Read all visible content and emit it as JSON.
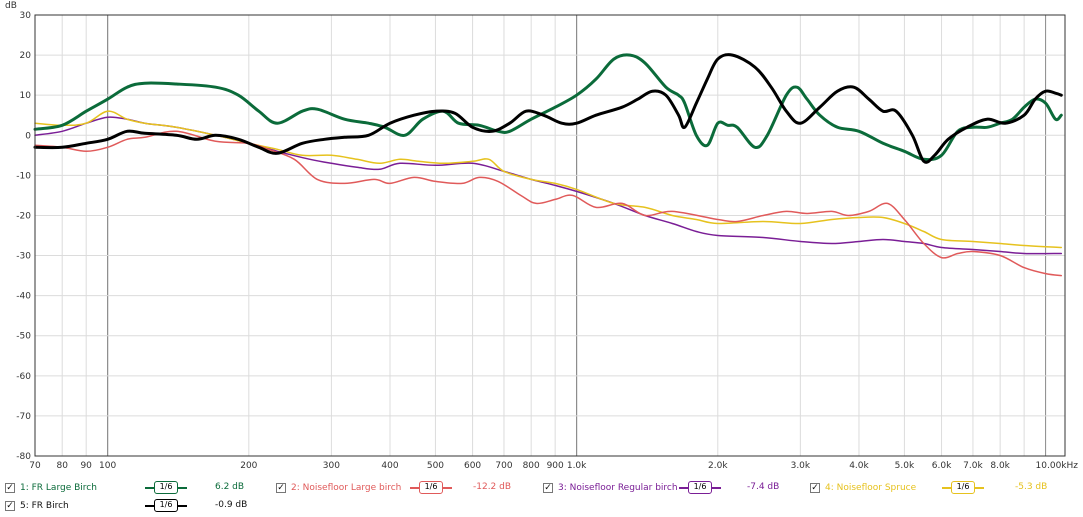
{
  "chart_data": {
    "type": "line",
    "ylabel": "dB",
    "xscale": "log",
    "xlim": [
      70,
      11000
    ],
    "ylim": [
      -80,
      30
    ],
    "grid": true,
    "legend_position": "bottom",
    "y_ticks": [
      "30",
      "20",
      "10",
      "0",
      "-10",
      "-20",
      "-30",
      "-40",
      "-50",
      "-60",
      "-70",
      "-80"
    ],
    "x_ticks": [
      {
        "v": 70,
        "label": "70"
      },
      {
        "v": 80,
        "label": "80"
      },
      {
        "v": 90,
        "label": "90"
      },
      {
        "v": 100,
        "label": "100"
      },
      {
        "v": 200,
        "label": "200"
      },
      {
        "v": 300,
        "label": "300"
      },
      {
        "v": 400,
        "label": "400"
      },
      {
        "v": 500,
        "label": "500"
      },
      {
        "v": 600,
        "label": "600"
      },
      {
        "v": 700,
        "label": "700"
      },
      {
        "v": 800,
        "label": "800"
      },
      {
        "v": 900,
        "label": "900"
      },
      {
        "v": 1000,
        "label": "1.0k"
      },
      {
        "v": 2000,
        "label": "2.0k"
      },
      {
        "v": 3000,
        "label": "3.0k"
      },
      {
        "v": 4000,
        "label": "4.0k"
      },
      {
        "v": 5000,
        "label": "5.0k"
      },
      {
        "v": 6000,
        "label": "6.0k"
      },
      {
        "v": 7000,
        "label": "7.0k"
      },
      {
        "v": 8000,
        "label": "8.0k"
      },
      {
        "v": 10000,
        "label": "10.00kHz"
      }
    ],
    "series": [
      {
        "name": "1: FR Large Birch",
        "color": "#0b6b3a",
        "width": 3,
        "value": "6.2 dB",
        "points": [
          [
            70,
            1.5
          ],
          [
            80,
            2.5
          ],
          [
            90,
            6
          ],
          [
            100,
            9
          ],
          [
            110,
            12
          ],
          [
            120,
            13
          ],
          [
            140,
            12.8
          ],
          [
            170,
            12
          ],
          [
            190,
            10
          ],
          [
            210,
            6
          ],
          [
            230,
            3
          ],
          [
            260,
            6
          ],
          [
            280,
            6.5
          ],
          [
            320,
            4
          ],
          [
            360,
            3
          ],
          [
            390,
            2
          ],
          [
            430,
            0
          ],
          [
            470,
            4
          ],
          [
            520,
            6
          ],
          [
            560,
            3
          ],
          [
            620,
            2.5
          ],
          [
            680,
            1
          ],
          [
            720,
            1
          ],
          [
            800,
            4
          ],
          [
            900,
            7
          ],
          [
            1000,
            10
          ],
          [
            1100,
            14
          ],
          [
            1200,
            19
          ],
          [
            1300,
            20
          ],
          [
            1400,
            18
          ],
          [
            1550,
            12
          ],
          [
            1650,
            10
          ],
          [
            1700,
            8
          ],
          [
            1800,
            0
          ],
          [
            1900,
            -2.5
          ],
          [
            2000,
            3
          ],
          [
            2100,
            2.5
          ],
          [
            2200,
            2
          ],
          [
            2400,
            -3
          ],
          [
            2550,
            0
          ],
          [
            2800,
            10
          ],
          [
            2950,
            12
          ],
          [
            3100,
            9
          ],
          [
            3300,
            5
          ],
          [
            3600,
            2
          ],
          [
            4000,
            1
          ],
          [
            4500,
            -2
          ],
          [
            5000,
            -4
          ],
          [
            5500,
            -6
          ],
          [
            6000,
            -5
          ],
          [
            6500,
            1
          ],
          [
            7000,
            2
          ],
          [
            7500,
            2
          ],
          [
            8000,
            3
          ],
          [
            8500,
            4
          ],
          [
            9000,
            7
          ],
          [
            9500,
            9
          ],
          [
            10000,
            8
          ],
          [
            10500,
            4
          ],
          [
            10800,
            5
          ]
        ]
      },
      {
        "name": "2: Noisefloor Large birch",
        "color": "#e05a5a",
        "width": 1.5,
        "value": "-12.2 dB",
        "points": [
          [
            70,
            -2.5
          ],
          [
            80,
            -3
          ],
          [
            90,
            -4
          ],
          [
            100,
            -3
          ],
          [
            110,
            -1
          ],
          [
            120,
            -0.5
          ],
          [
            140,
            1
          ],
          [
            170,
            -1.5
          ],
          [
            200,
            -2
          ],
          [
            220,
            -3.5
          ],
          [
            250,
            -6
          ],
          [
            280,
            -11
          ],
          [
            320,
            -12
          ],
          [
            370,
            -11
          ],
          [
            400,
            -12
          ],
          [
            450,
            -10.5
          ],
          [
            500,
            -11.5
          ],
          [
            570,
            -12
          ],
          [
            620,
            -10.5
          ],
          [
            680,
            -11.5
          ],
          [
            760,
            -15
          ],
          [
            820,
            -17
          ],
          [
            900,
            -16
          ],
          [
            980,
            -15
          ],
          [
            1100,
            -18
          ],
          [
            1250,
            -17
          ],
          [
            1400,
            -20
          ],
          [
            1600,
            -19
          ],
          [
            2000,
            -21
          ],
          [
            2200,
            -21.5
          ],
          [
            2500,
            -20
          ],
          [
            2800,
            -19
          ],
          [
            3100,
            -19.5
          ],
          [
            3500,
            -19
          ],
          [
            3800,
            -20
          ],
          [
            4200,
            -19
          ],
          [
            4600,
            -17
          ],
          [
            5000,
            -21
          ],
          [
            5500,
            -27
          ],
          [
            6000,
            -30.5
          ],
          [
            6500,
            -29.5
          ],
          [
            7000,
            -29
          ],
          [
            8000,
            -30
          ],
          [
            9000,
            -33
          ],
          [
            10000,
            -34.5
          ],
          [
            10800,
            -35
          ]
        ]
      },
      {
        "name": "3: Noisefloor Regular birch",
        "color": "#7a1e96",
        "width": 1.5,
        "value": "-7.4 dB",
        "points": [
          [
            70,
            0
          ],
          [
            80,
            1
          ],
          [
            90,
            3
          ],
          [
            100,
            4.5
          ],
          [
            110,
            4
          ],
          [
            120,
            3
          ],
          [
            140,
            2
          ],
          [
            170,
            0
          ],
          [
            200,
            -2
          ],
          [
            230,
            -4
          ],
          [
            270,
            -6
          ],
          [
            300,
            -7
          ],
          [
            340,
            -8
          ],
          [
            380,
            -8.5
          ],
          [
            420,
            -7
          ],
          [
            500,
            -7.5
          ],
          [
            600,
            -7
          ],
          [
            700,
            -9
          ],
          [
            800,
            -11
          ],
          [
            900,
            -12.5
          ],
          [
            1000,
            -14
          ],
          [
            1200,
            -17
          ],
          [
            1400,
            -20
          ],
          [
            1600,
            -22
          ],
          [
            1800,
            -24
          ],
          [
            2000,
            -25
          ],
          [
            2500,
            -25.5
          ],
          [
            3000,
            -26.5
          ],
          [
            3500,
            -27
          ],
          [
            4000,
            -26.5
          ],
          [
            4500,
            -26
          ],
          [
            5000,
            -26.5
          ],
          [
            5500,
            -27
          ],
          [
            6000,
            -28
          ],
          [
            7000,
            -28.5
          ],
          [
            8000,
            -29
          ],
          [
            9000,
            -29.5
          ],
          [
            10800,
            -29.5
          ]
        ]
      },
      {
        "name": "4: Noisefloor Spruce",
        "color": "#e6c21e",
        "width": 1.5,
        "value": "-5.3 dB",
        "points": [
          [
            70,
            3
          ],
          [
            80,
            2.5
          ],
          [
            90,
            3
          ],
          [
            100,
            6
          ],
          [
            110,
            4
          ],
          [
            120,
            3
          ],
          [
            140,
            2
          ],
          [
            170,
            0
          ],
          [
            200,
            -2
          ],
          [
            230,
            -3.5
          ],
          [
            260,
            -5
          ],
          [
            300,
            -5
          ],
          [
            340,
            -6
          ],
          [
            380,
            -7
          ],
          [
            420,
            -6
          ],
          [
            460,
            -6.5
          ],
          [
            520,
            -7
          ],
          [
            600,
            -6.5
          ],
          [
            650,
            -6
          ],
          [
            700,
            -9
          ],
          [
            800,
            -11
          ],
          [
            900,
            -12
          ],
          [
            1000,
            -13.5
          ],
          [
            1200,
            -17
          ],
          [
            1400,
            -18
          ],
          [
            1600,
            -20
          ],
          [
            1800,
            -21
          ],
          [
            2000,
            -22
          ],
          [
            2500,
            -21.5
          ],
          [
            3000,
            -22
          ],
          [
            3500,
            -21
          ],
          [
            4000,
            -20.5
          ],
          [
            4500,
            -20.5
          ],
          [
            5000,
            -22
          ],
          [
            5500,
            -24
          ],
          [
            6000,
            -26
          ],
          [
            7000,
            -26.5
          ],
          [
            8000,
            -27
          ],
          [
            9000,
            -27.5
          ],
          [
            10800,
            -28
          ]
        ]
      },
      {
        "name": "5: FR Birch",
        "color": "#000000",
        "width": 3,
        "value": "-0.9 dB",
        "points": [
          [
            70,
            -3
          ],
          [
            80,
            -3
          ],
          [
            90,
            -2
          ],
          [
            100,
            -1
          ],
          [
            110,
            1
          ],
          [
            120,
            0.5
          ],
          [
            140,
            0
          ],
          [
            155,
            -1
          ],
          [
            170,
            0
          ],
          [
            190,
            -1
          ],
          [
            210,
            -3
          ],
          [
            230,
            -4.5
          ],
          [
            260,
            -2
          ],
          [
            290,
            -1
          ],
          [
            320,
            -0.5
          ],
          [
            360,
            0
          ],
          [
            400,
            3
          ],
          [
            450,
            5
          ],
          [
            500,
            6
          ],
          [
            550,
            5.5
          ],
          [
            600,
            2
          ],
          [
            660,
            1
          ],
          [
            720,
            3
          ],
          [
            780,
            6
          ],
          [
            850,
            5
          ],
          [
            930,
            3
          ],
          [
            1000,
            3
          ],
          [
            1100,
            5
          ],
          [
            1250,
            7
          ],
          [
            1350,
            9
          ],
          [
            1450,
            11
          ],
          [
            1550,
            10
          ],
          [
            1650,
            5
          ],
          [
            1700,
            2
          ],
          [
            1800,
            8
          ],
          [
            1900,
            14
          ],
          [
            2000,
            19
          ],
          [
            2150,
            20
          ],
          [
            2400,
            17
          ],
          [
            2600,
            12
          ],
          [
            2800,
            6
          ],
          [
            3000,
            3
          ],
          [
            3300,
            7
          ],
          [
            3600,
            11
          ],
          [
            3900,
            12
          ],
          [
            4200,
            9
          ],
          [
            4500,
            6
          ],
          [
            4800,
            6
          ],
          [
            5200,
            0
          ],
          [
            5500,
            -6.5
          ],
          [
            5800,
            -5
          ],
          [
            6200,
            -1
          ],
          [
            6800,
            2
          ],
          [
            7500,
            4
          ],
          [
            8200,
            3
          ],
          [
            9000,
            5
          ],
          [
            9500,
            9
          ],
          [
            10000,
            11
          ],
          [
            10500,
            10.5
          ],
          [
            10800,
            10
          ]
        ]
      }
    ],
    "smoothing_label": "1/6"
  }
}
